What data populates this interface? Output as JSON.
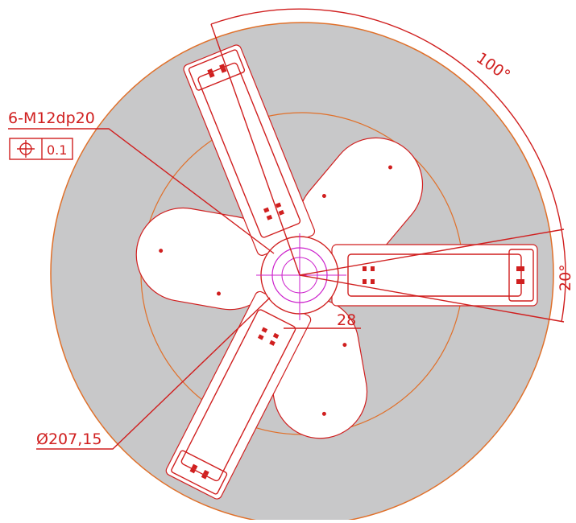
{
  "callout": {
    "thread": "6-M12dp20",
    "position_tolerance": "0.1"
  },
  "dimensions": {
    "angle_span": "100°",
    "angle_arm": "20°",
    "offset": "28",
    "diameter": "Ø207,15"
  }
}
